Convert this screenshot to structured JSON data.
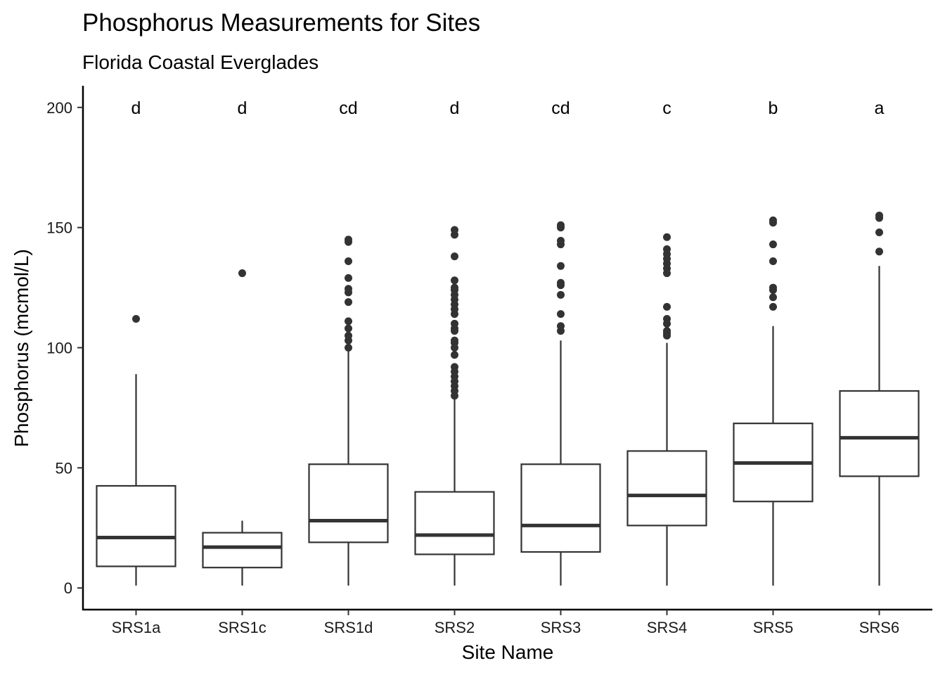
{
  "chart_data": {
    "type": "boxplot",
    "title": "Phosphorus Measurements for Sites",
    "subtitle": "Florida Coastal Everglades",
    "xlabel": "Site Name",
    "ylabel": "Phosphorus (mcmol/L)",
    "ylim": [
      -9,
      209
    ],
    "yticks": [
      0,
      50,
      100,
      150,
      200
    ],
    "grid": false,
    "legend": "none",
    "categories": [
      "SRS1a",
      "SRS1c",
      "SRS1d",
      "SRS2",
      "SRS3",
      "SRS4",
      "SRS5",
      "SRS6"
    ],
    "letters": [
      "d",
      "d",
      "cd",
      "d",
      "cd",
      "c",
      "b",
      "a"
    ],
    "boxes": [
      {
        "min": 1,
        "q1": 9,
        "median": 21,
        "q3": 42.5,
        "max": 89,
        "outliers": [
          112
        ]
      },
      {
        "min": 1,
        "q1": 8.5,
        "median": 17,
        "q3": 23,
        "max": 28,
        "outliers": [
          131
        ]
      },
      {
        "min": 1,
        "q1": 19,
        "median": 28,
        "q3": 51.5,
        "max": 100,
        "outliers": [
          100,
          103,
          105,
          108,
          111,
          119,
          123,
          124.5,
          129,
          136,
          144,
          145
        ]
      },
      {
        "min": 1,
        "q1": 14,
        "median": 22,
        "q3": 40,
        "max": 79,
        "outliers": [
          80,
          82,
          84,
          86,
          88,
          90,
          92,
          97,
          100,
          102,
          103,
          107,
          108,
          110,
          114,
          116,
          118,
          120,
          122,
          124,
          125,
          128,
          138,
          147,
          149
        ]
      },
      {
        "min": 1,
        "q1": 15,
        "median": 26,
        "q3": 51.5,
        "max": 103,
        "outliers": [
          107,
          109,
          114,
          122,
          126,
          127,
          134,
          143,
          144.5,
          150,
          151
        ]
      },
      {
        "min": 1,
        "q1": 26,
        "median": 38.5,
        "q3": 57,
        "max": 102,
        "outliers": [
          105,
          106,
          107,
          110,
          112,
          117,
          131,
          133,
          135,
          137,
          139,
          141,
          146
        ]
      },
      {
        "min": 1,
        "q1": 36,
        "median": 52,
        "q3": 68.5,
        "max": 109,
        "outliers": [
          117,
          121,
          124,
          125,
          136,
          143,
          152,
          153
        ]
      },
      {
        "min": 1,
        "q1": 46.5,
        "median": 62.5,
        "q3": 82,
        "max": 134,
        "outliers": [
          140,
          148,
          154,
          155
        ]
      }
    ]
  }
}
